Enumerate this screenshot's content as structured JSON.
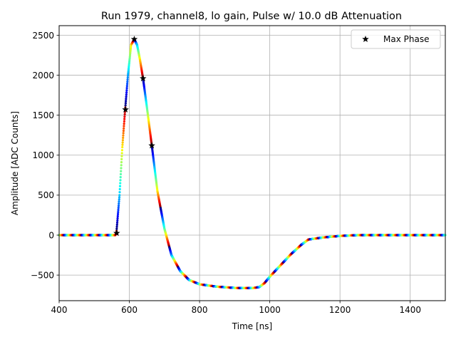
{
  "chart_data": {
    "type": "scatter",
    "title": "Run 1979, channel8, lo gain, Pulse w/ 10.0 dB Attenuation",
    "xlabel": "Time [ns]",
    "ylabel": "Amplitude [ADC Counts]",
    "xlim": [
      400,
      1500
    ],
    "ylim": [
      -820,
      2620
    ],
    "xticks": [
      400,
      600,
      800,
      1000,
      1200,
      1400
    ],
    "yticks": [
      -500,
      0,
      500,
      1000,
      1500,
      2000,
      2500
    ],
    "grid": true,
    "legend_position": "top-right",
    "colormap": "jet",
    "waveform_period_ns": 25,
    "waveform_knots": [
      [
        400,
        0
      ],
      [
        560,
        0
      ],
      [
        563,
        25
      ],
      [
        572,
        500
      ],
      [
        580,
        1100
      ],
      [
        588,
        1570
      ],
      [
        596,
        2000
      ],
      [
        605,
        2380
      ],
      [
        614,
        2450
      ],
      [
        622,
        2380
      ],
      [
        630,
        2200
      ],
      [
        639,
        1960
      ],
      [
        650,
        1600
      ],
      [
        664,
        1120
      ],
      [
        680,
        550
      ],
      [
        700,
        80
      ],
      [
        720,
        -250
      ],
      [
        745,
        -450
      ],
      [
        770,
        -560
      ],
      [
        800,
        -615
      ],
      [
        850,
        -645
      ],
      [
        900,
        -660
      ],
      [
        950,
        -663
      ],
      [
        970,
        -650
      ],
      [
        985,
        -600
      ],
      [
        1000,
        -520
      ],
      [
        1030,
        -380
      ],
      [
        1060,
        -240
      ],
      [
        1090,
        -120
      ],
      [
        1110,
        -55
      ],
      [
        1150,
        -30
      ],
      [
        1200,
        -10
      ],
      [
        1250,
        0
      ],
      [
        1500,
        0
      ]
    ],
    "series": [
      {
        "name": "Max Phase",
        "marker": "star",
        "color": "#000000",
        "points": [
          [
            564,
            25
          ],
          [
            589,
            1570
          ],
          [
            614,
            2450
          ],
          [
            639,
            1960
          ],
          [
            664,
            1120
          ]
        ]
      }
    ]
  }
}
